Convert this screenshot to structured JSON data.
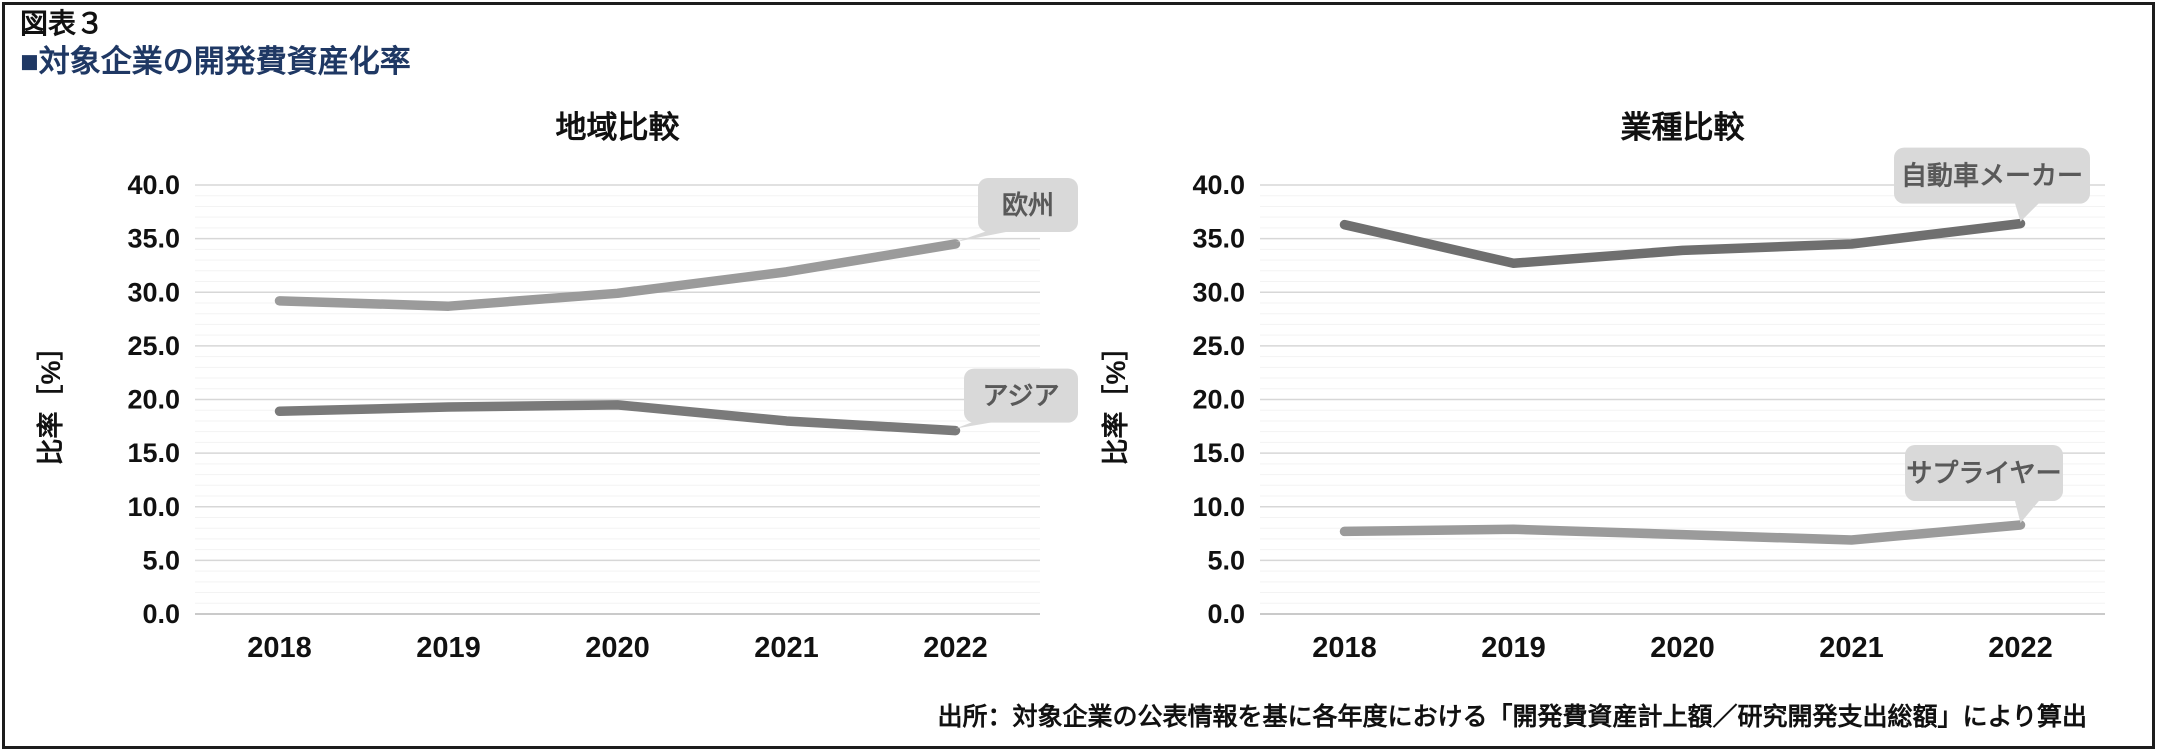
{
  "header": {
    "figure_label": "図表３",
    "title": "■対象企業の開発費資産化率",
    "title_color": "#1f3864"
  },
  "footer": {
    "source": "出所：対象企業の公表情報を基に各年度における「開発費資産計上額／研究開発支出総額」により算出"
  },
  "callout_style": {
    "bg": "#d9d9d9",
    "text_color": "#595959"
  },
  "grid_colors": {
    "minor": "#f3f3f3",
    "major": "#d7d7d7",
    "axis": "#b8b8b8"
  },
  "chart_data": [
    {
      "type": "line",
      "title": "地域比較",
      "ylabel": "比率［%］",
      "categories": [
        "2018",
        "2019",
        "2020",
        "2021",
        "2022"
      ],
      "series": [
        {
          "name": "欧州",
          "values": [
            29.2,
            28.7,
            29.9,
            31.9,
            34.5
          ],
          "color": "#9b9b9b"
        },
        {
          "name": "アジア",
          "values": [
            18.9,
            19.3,
            19.5,
            18.0,
            17.1
          ],
          "color": "#7a7a7a"
        }
      ],
      "ylim": [
        0,
        40
      ],
      "ytick_step": 5,
      "minor_step": 1,
      "ytick_format": "one-decimal",
      "grid": true,
      "legend_position": "callout-right"
    },
    {
      "type": "line",
      "title": "業種比較",
      "ylabel": "比率［%］",
      "categories": [
        "2018",
        "2019",
        "2020",
        "2021",
        "2022"
      ],
      "series": [
        {
          "name": "自動車メーカー",
          "values": [
            36.3,
            32.7,
            33.9,
            34.5,
            36.4
          ],
          "color": "#6f6f6f"
        },
        {
          "name": "サプライヤー",
          "values": [
            7.7,
            7.9,
            7.4,
            6.9,
            8.3
          ],
          "color": "#9b9b9b"
        }
      ],
      "ylim": [
        0,
        40
      ],
      "ytick_step": 5,
      "minor_step": 1,
      "ytick_format": "one-decimal",
      "grid": true,
      "legend_position": "callout-right"
    }
  ]
}
